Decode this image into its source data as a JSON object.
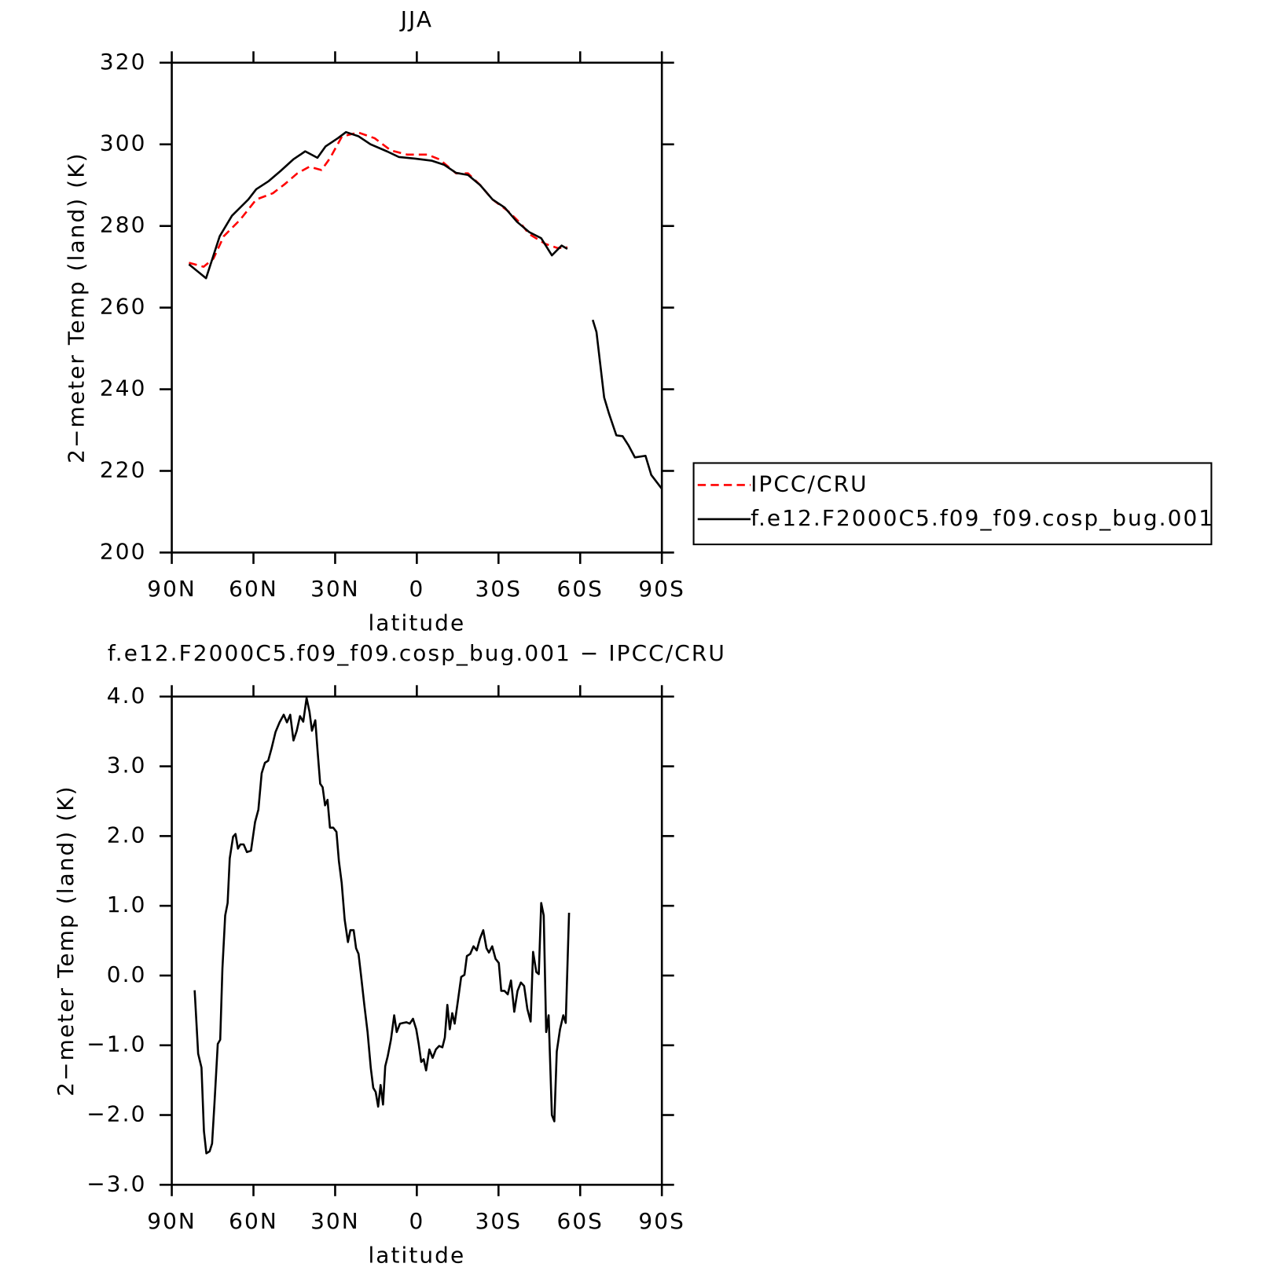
{
  "chart_data": [
    {
      "type": "line",
      "title": "JJA",
      "xlabel": "latitude",
      "ylabel": "2−meter Temp (land) (K)",
      "xlim": [
        90,
        -90
      ],
      "xticks": [
        {
          "value": 90,
          "label": "90N"
        },
        {
          "value": 60,
          "label": "60N"
        },
        {
          "value": 30,
          "label": "30N"
        },
        0,
        {
          "value": -30,
          "label": "30S"
        },
        {
          "value": -60,
          "label": "60S"
        },
        {
          "value": -90,
          "label": "90S"
        }
      ],
      "ylim": [
        200,
        320
      ],
      "yticks": [
        200,
        220,
        240,
        260,
        280,
        300,
        320
      ],
      "legend": "right",
      "series": [
        {
          "name": "IPCC/CRU",
          "color": "#ff0000",
          "dash": "dashed",
          "x": [
            83.7,
            78.3,
            74.7,
            70.9,
            64.9,
            59.0,
            52.9,
            48.4,
            43.9,
            39.5,
            35.0,
            32.0,
            27.5,
            21.5,
            15.5,
            9.5,
            3.6,
            -3.9,
            -8.4,
            -14.4,
            -18.8,
            -23.3,
            -27.8,
            -33.8,
            -38.3,
            -41.3,
            -47.2,
            -51.7,
            -55.3
          ],
          "values": [
            271,
            270,
            272,
            277.5,
            281.5,
            286.5,
            288,
            290.3,
            292.9,
            294.5,
            293.7,
            296.5,
            301.9,
            302.9,
            301.5,
            298.5,
            297.5,
            297.5,
            296.3,
            292.9,
            292.9,
            290,
            286.5,
            283.5,
            280.5,
            278,
            275.6,
            274.6,
            274.8
          ]
        },
        {
          "name": "f.e12.F2000C5.f09_f09.cosp_bug.001",
          "color": "#000000",
          "dash": "solid",
          "x": [
            83.7,
            77.4,
            72.4,
            67.9,
            61.9,
            59.0,
            54.4,
            50.0,
            45.4,
            41.0,
            36.5,
            33.5,
            29.0,
            26.0,
            21.5,
            17.0,
            11.0,
            6.6,
            0.6,
            -5.4,
            -10.0,
            -14.4,
            -18.8,
            -23.3,
            -27.8,
            -32.3,
            -36.8,
            -41.3,
            -45.7,
            -49.6,
            -53.2,
            -55.3,
            -60.0,
            -64.6,
            -66.0,
            -68.8,
            -70.6,
            -73.3,
            -75.6,
            -77.7,
            -80.1,
            -84.0,
            -86.1,
            -90.0
          ],
          "values": [
            270.6,
            267.2,
            277.5,
            282.5,
            286.5,
            289,
            291,
            293.5,
            296.3,
            298.3,
            296.7,
            299.5,
            301.5,
            303,
            302,
            300,
            298.3,
            296.9,
            296.5,
            296,
            295,
            293,
            292.5,
            290,
            286.5,
            284.5,
            281,
            278.5,
            277,
            272.8,
            275.2,
            274.4,
            null,
            257,
            254,
            238,
            234,
            228.7,
            228.5,
            226.3,
            223.3,
            223.7,
            219,
            215.6
          ]
        }
      ]
    },
    {
      "type": "line",
      "title": "f.e12.F2000C5.f09_f09.cosp_bug.001 − IPCC/CRU",
      "xlabel": "latitude",
      "ylabel": "2−meter Temp (land) (K)",
      "xlim": [
        90,
        -90
      ],
      "xticks": [
        {
          "value": 90,
          "label": "90N"
        },
        {
          "value": 60,
          "label": "60N"
        },
        {
          "value": 30,
          "label": "30N"
        },
        0,
        {
          "value": -30,
          "label": "30S"
        },
        {
          "value": -60,
          "label": "60S"
        },
        {
          "value": -90,
          "label": "90S"
        }
      ],
      "ylim": [
        -3,
        4
      ],
      "yticks": [
        {
          "value": -3,
          "label": "−3.0"
        },
        {
          "value": -2,
          "label": "−2.0"
        },
        {
          "value": -1,
          "label": "−1.0"
        },
        {
          "value": 0,
          "label": "0.0"
        },
        {
          "value": 1,
          "label": "1.0"
        },
        {
          "value": 2,
          "label": "2.0"
        },
        {
          "value": 3,
          "label": "3.0"
        },
        {
          "value": 4,
          "label": "4.0"
        }
      ],
      "series": [
        {
          "color": "#000000",
          "dash": "solid",
          "x": [
            81.6,
            80.3,
            79.1,
            78.2,
            77.3,
            76.1,
            75.2,
            74.3,
            73.1,
            72.2,
            71.4,
            70.4,
            69.5,
            68.7,
            67.5,
            66.6,
            65.7,
            64.8,
            63.6,
            62.4,
            60.9,
            59.4,
            58.2,
            57.0,
            55.8,
            54.6,
            53.4,
            51.9,
            50.4,
            48.9,
            47.7,
            46.5,
            45.3,
            44.1,
            42.9,
            41.7,
            40.5,
            39.4,
            38.5,
            37.3,
            36.4,
            35.5,
            34.6,
            33.7,
            32.8,
            31.9,
            30.7,
            29.5,
            28.6,
            27.6,
            26.5,
            25.3,
            24.4,
            23.2,
            22.3,
            21.4,
            20.5,
            19.3,
            18.1,
            16.9,
            16.0,
            15.1,
            14.2,
            13.3,
            12.4,
            11.6,
            10.7,
            9.5,
            8.3,
            7.4,
            6.2,
            5.0,
            3.8,
            2.6,
            1.4,
            0.2,
            -0.7,
            -1.6,
            -2.5,
            -3.4,
            -4.6,
            -5.8,
            -7.0,
            -8.2,
            -9.4,
            -10.3,
            -11.2,
            -12.1,
            -13.0,
            -13.9,
            -15.1,
            -16.3,
            -17.5,
            -18.4,
            -19.6,
            -20.8,
            -22.0,
            -23.2,
            -24.4,
            -25.6,
            -26.5,
            -27.7,
            -28.9,
            -30.1,
            -31.0,
            -32.2,
            -33.4,
            -34.6,
            -35.8,
            -37.0,
            -38.2,
            -39.4,
            -40.6,
            -41.8,
            -42.7,
            -43.9,
            -44.8,
            -45.7,
            -46.6,
            -47.5,
            -48.4,
            -49.6,
            -50.5,
            -51.4,
            -52.6,
            -53.8,
            -54.7,
            -55.9
          ],
          "values": [
            -0.21,
            -1.12,
            -1.32,
            -2.23,
            -2.55,
            -2.52,
            -2.41,
            -1.82,
            -0.98,
            -0.92,
            0.1,
            0.86,
            1.04,
            1.68,
            1.99,
            2.03,
            1.82,
            1.88,
            1.88,
            1.77,
            1.79,
            2.2,
            2.38,
            2.9,
            3.05,
            3.08,
            3.25,
            3.49,
            3.63,
            3.74,
            3.63,
            3.74,
            3.37,
            3.51,
            3.72,
            3.64,
            3.98,
            3.78,
            3.51,
            3.66,
            3.19,
            2.75,
            2.7,
            2.44,
            2.52,
            2.12,
            2.12,
            2.06,
            1.64,
            1.33,
            0.8,
            0.48,
            0.65,
            0.65,
            0.39,
            0.31,
            0.01,
            -0.42,
            -0.81,
            -1.33,
            -1.61,
            -1.67,
            -1.88,
            -1.57,
            -1.85,
            -1.3,
            -1.16,
            -0.92,
            -0.57,
            -0.81,
            -0.69,
            -0.68,
            -0.67,
            -0.69,
            -0.62,
            -0.77,
            -0.98,
            -1.24,
            -1.2,
            -1.36,
            -1.06,
            -1.18,
            -1.06,
            -1.01,
            -1.03,
            -0.89,
            -0.42,
            -0.77,
            -0.54,
            -0.69,
            -0.36,
            -0.02,
            0.01,
            0.28,
            0.31,
            0.42,
            0.36,
            0.53,
            0.65,
            0.39,
            0.33,
            0.42,
            0.24,
            0.18,
            -0.22,
            -0.22,
            -0.27,
            -0.07,
            -0.52,
            -0.22,
            -0.1,
            -0.15,
            -0.48,
            -0.66,
            0.34,
            0.05,
            0.02,
            1.04,
            0.86,
            -0.81,
            -0.57,
            -2.0,
            -2.09,
            -1.09,
            -0.77,
            -0.57,
            -0.68,
            0.9
          ]
        }
      ]
    }
  ]
}
